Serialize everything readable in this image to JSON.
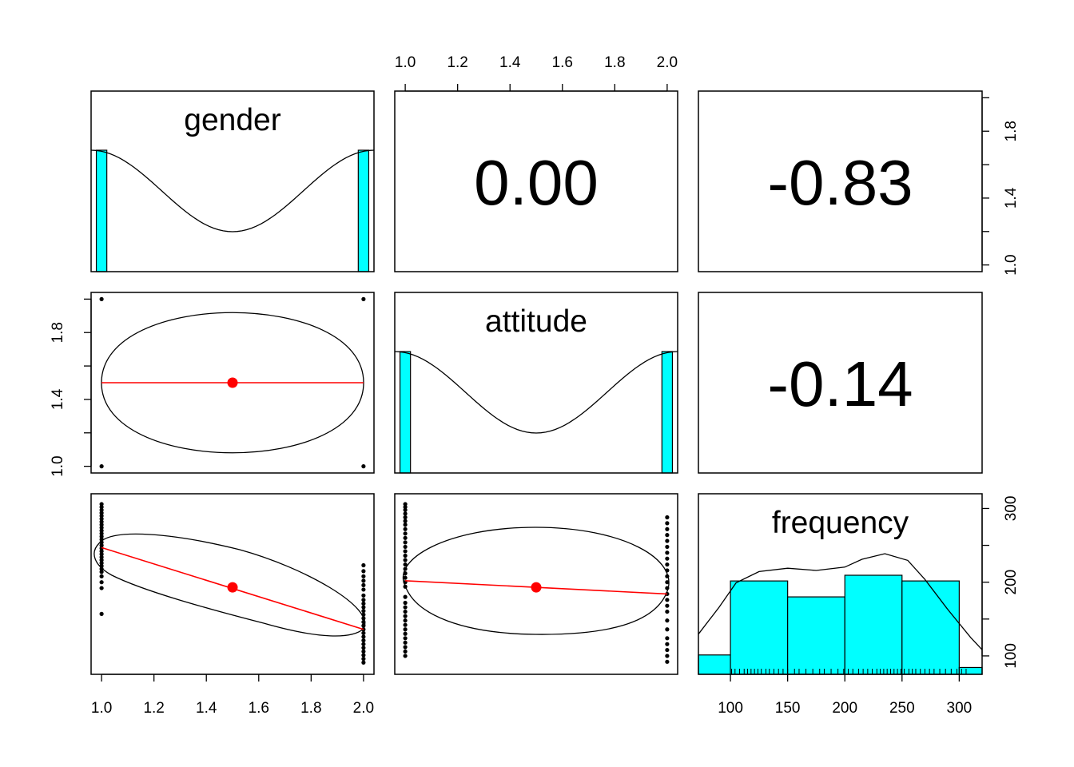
{
  "chart_data": {
    "type": "scatter",
    "variables": [
      "gender",
      "attitude",
      "frequency"
    ],
    "colors": {
      "hist": "#00FFFF",
      "fit": "#FF0000",
      "points": "#000000"
    },
    "axes": {
      "binary": {
        "ticks": [
          "1.0",
          "1.2",
          "1.4",
          "1.6",
          "1.8",
          "2.0"
        ],
        "range": [
          0.96,
          2.04
        ]
      },
      "binary_y": {
        "ticks": [
          "1.0",
          "1.4",
          "1.8"
        ],
        "tick_values": [
          1.0,
          1.4,
          1.8
        ],
        "range": [
          0.96,
          2.04
        ]
      },
      "binary_y_right": {
        "ticks": [
          "1.0",
          "1.4",
          "1.8"
        ],
        "tick_values": [
          1.0,
          1.4,
          1.8
        ],
        "minor": [
          1.2,
          1.6,
          2.0
        ],
        "range": [
          0.96,
          2.04
        ]
      },
      "frequency_x": {
        "ticks": [
          "100",
          "150",
          "200",
          "250",
          "300"
        ],
        "tick_values": [
          100,
          150,
          200,
          250,
          300
        ],
        "range": [
          72,
          320
        ]
      },
      "frequency_y": {
        "ticks": [
          "100",
          "200",
          "300"
        ],
        "tick_values": [
          100,
          200,
          300
        ],
        "minor": [
          150,
          250
        ],
        "range": [
          75,
          320
        ]
      }
    },
    "correlations": [
      {
        "pair": [
          "gender",
          "attitude"
        ],
        "r": "0.00"
      },
      {
        "pair": [
          "gender",
          "frequency"
        ],
        "r": "-0.83"
      },
      {
        "pair": [
          "attitude",
          "frequency"
        ],
        "r": "-0.14"
      }
    ],
    "diagonal": {
      "gender": {
        "bars": [
          {
            "x0": 0.98,
            "x1": 1.02,
            "h": 1
          },
          {
            "x0": 1.98,
            "x1": 2.02,
            "h": 1
          }
        ]
      },
      "attitude": {
        "bars": [
          {
            "x0": 0.98,
            "x1": 1.02,
            "h": 1
          },
          {
            "x0": 1.98,
            "x1": 2.02,
            "h": 1
          }
        ]
      },
      "frequency": {
        "bins": [
          {
            "x0": 72,
            "x1": 100,
            "h": 0.17
          },
          {
            "x0": 100,
            "x1": 150,
            "h": 0.82
          },
          {
            "x0": 150,
            "x1": 200,
            "h": 0.68
          },
          {
            "x0": 200,
            "x1": 250,
            "h": 0.87
          },
          {
            "x0": 250,
            "x1": 300,
            "h": 0.82
          },
          {
            "x0": 300,
            "x1": 320,
            "h": 0.06
          }
        ],
        "rug": [
          101,
          104,
          108,
          112,
          115,
          118,
          121,
          124,
          127,
          131,
          134,
          138,
          142,
          146,
          150,
          156,
          160,
          166,
          172,
          178,
          182,
          188,
          194,
          199,
          203,
          207,
          212,
          216,
          220,
          224,
          228,
          231,
          234,
          237,
          240,
          243,
          246,
          249,
          252,
          256,
          259,
          262,
          266,
          270,
          274,
          278,
          283,
          288,
          293,
          298,
          302,
          306
        ]
      }
    },
    "scatter": {
      "gender_attitude": {
        "points": [
          [
            1,
            1
          ],
          [
            1,
            2
          ],
          [
            2,
            1
          ],
          [
            2,
            2
          ]
        ],
        "center": [
          1.5,
          1.5
        ],
        "fit": [
          [
            1.0,
            1.5
          ],
          [
            2.0,
            1.5
          ]
        ]
      },
      "gender_frequency": {
        "points": [
          [
            1,
            306
          ],
          [
            1,
            302
          ],
          [
            1,
            298
          ],
          [
            1,
            294
          ],
          [
            1,
            290
          ],
          [
            1,
            286
          ],
          [
            1,
            282
          ],
          [
            1,
            278
          ],
          [
            1,
            274
          ],
          [
            1,
            270
          ],
          [
            1,
            266
          ],
          [
            1,
            262
          ],
          [
            1,
            258
          ],
          [
            1,
            254
          ],
          [
            1,
            250
          ],
          [
            1,
            246
          ],
          [
            1,
            242
          ],
          [
            1,
            238
          ],
          [
            1,
            234
          ],
          [
            1,
            230
          ],
          [
            1,
            226
          ],
          [
            1,
            222
          ],
          [
            1,
            218
          ],
          [
            1,
            214
          ],
          [
            1,
            208
          ],
          [
            1,
            200
          ],
          [
            1,
            192
          ],
          [
            1,
            157
          ],
          [
            2,
            223
          ],
          [
            2,
            215
          ],
          [
            2,
            208
          ],
          [
            2,
            202
          ],
          [
            2,
            196
          ],
          [
            2,
            190
          ],
          [
            2,
            182
          ],
          [
            2,
            176
          ],
          [
            2,
            171
          ],
          [
            2,
            166
          ],
          [
            2,
            161
          ],
          [
            2,
            156
          ],
          [
            2,
            151
          ],
          [
            2,
            146
          ],
          [
            2,
            141
          ],
          [
            2,
            136
          ],
          [
            2,
            131
          ],
          [
            2,
            126
          ],
          [
            2,
            121
          ],
          [
            2,
            116
          ],
          [
            2,
            111
          ],
          [
            2,
            106
          ],
          [
            2,
            101
          ],
          [
            2,
            96
          ],
          [
            2,
            91
          ]
        ],
        "center": [
          1.5,
          193
        ],
        "fit": [
          [
            1.0,
            247
          ],
          [
            2.0,
            136
          ]
        ]
      },
      "attitude_frequency": {
        "points": [
          [
            1,
            306
          ],
          [
            1,
            302
          ],
          [
            1,
            298
          ],
          [
            1,
            293
          ],
          [
            1,
            288
          ],
          [
            1,
            283
          ],
          [
            1,
            278
          ],
          [
            1,
            272
          ],
          [
            1,
            266
          ],
          [
            1,
            260
          ],
          [
            1,
            254
          ],
          [
            1,
            248
          ],
          [
            1,
            242
          ],
          [
            1,
            236
          ],
          [
            1,
            230
          ],
          [
            1,
            224
          ],
          [
            1,
            218
          ],
          [
            1,
            212
          ],
          [
            1,
            206
          ],
          [
            1,
            200
          ],
          [
            1,
            194
          ],
          [
            1,
            180
          ],
          [
            1,
            172
          ],
          [
            1,
            166
          ],
          [
            1,
            160
          ],
          [
            1,
            154
          ],
          [
            1,
            148
          ],
          [
            1,
            142
          ],
          [
            1,
            136
          ],
          [
            1,
            130
          ],
          [
            1,
            124
          ],
          [
            1,
            118
          ],
          [
            1,
            112
          ],
          [
            1,
            106
          ],
          [
            1,
            100
          ],
          [
            2,
            288
          ],
          [
            2,
            280
          ],
          [
            2,
            272
          ],
          [
            2,
            264
          ],
          [
            2,
            256
          ],
          [
            2,
            248
          ],
          [
            2,
            240
          ],
          [
            2,
            232
          ],
          [
            2,
            224
          ],
          [
            2,
            216
          ],
          [
            2,
            208
          ],
          [
            2,
            200
          ],
          [
            2,
            192
          ],
          [
            2,
            184
          ],
          [
            2,
            176
          ],
          [
            2,
            168
          ],
          [
            2,
            160
          ],
          [
            2,
            148
          ],
          [
            2,
            136
          ],
          [
            2,
            124
          ],
          [
            2,
            116
          ],
          [
            2,
            108
          ],
          [
            2,
            100
          ],
          [
            2,
            92
          ]
        ],
        "center": [
          1.5,
          193
        ],
        "fit": [
          [
            1.0,
            202
          ],
          [
            2.0,
            184
          ]
        ]
      }
    }
  }
}
